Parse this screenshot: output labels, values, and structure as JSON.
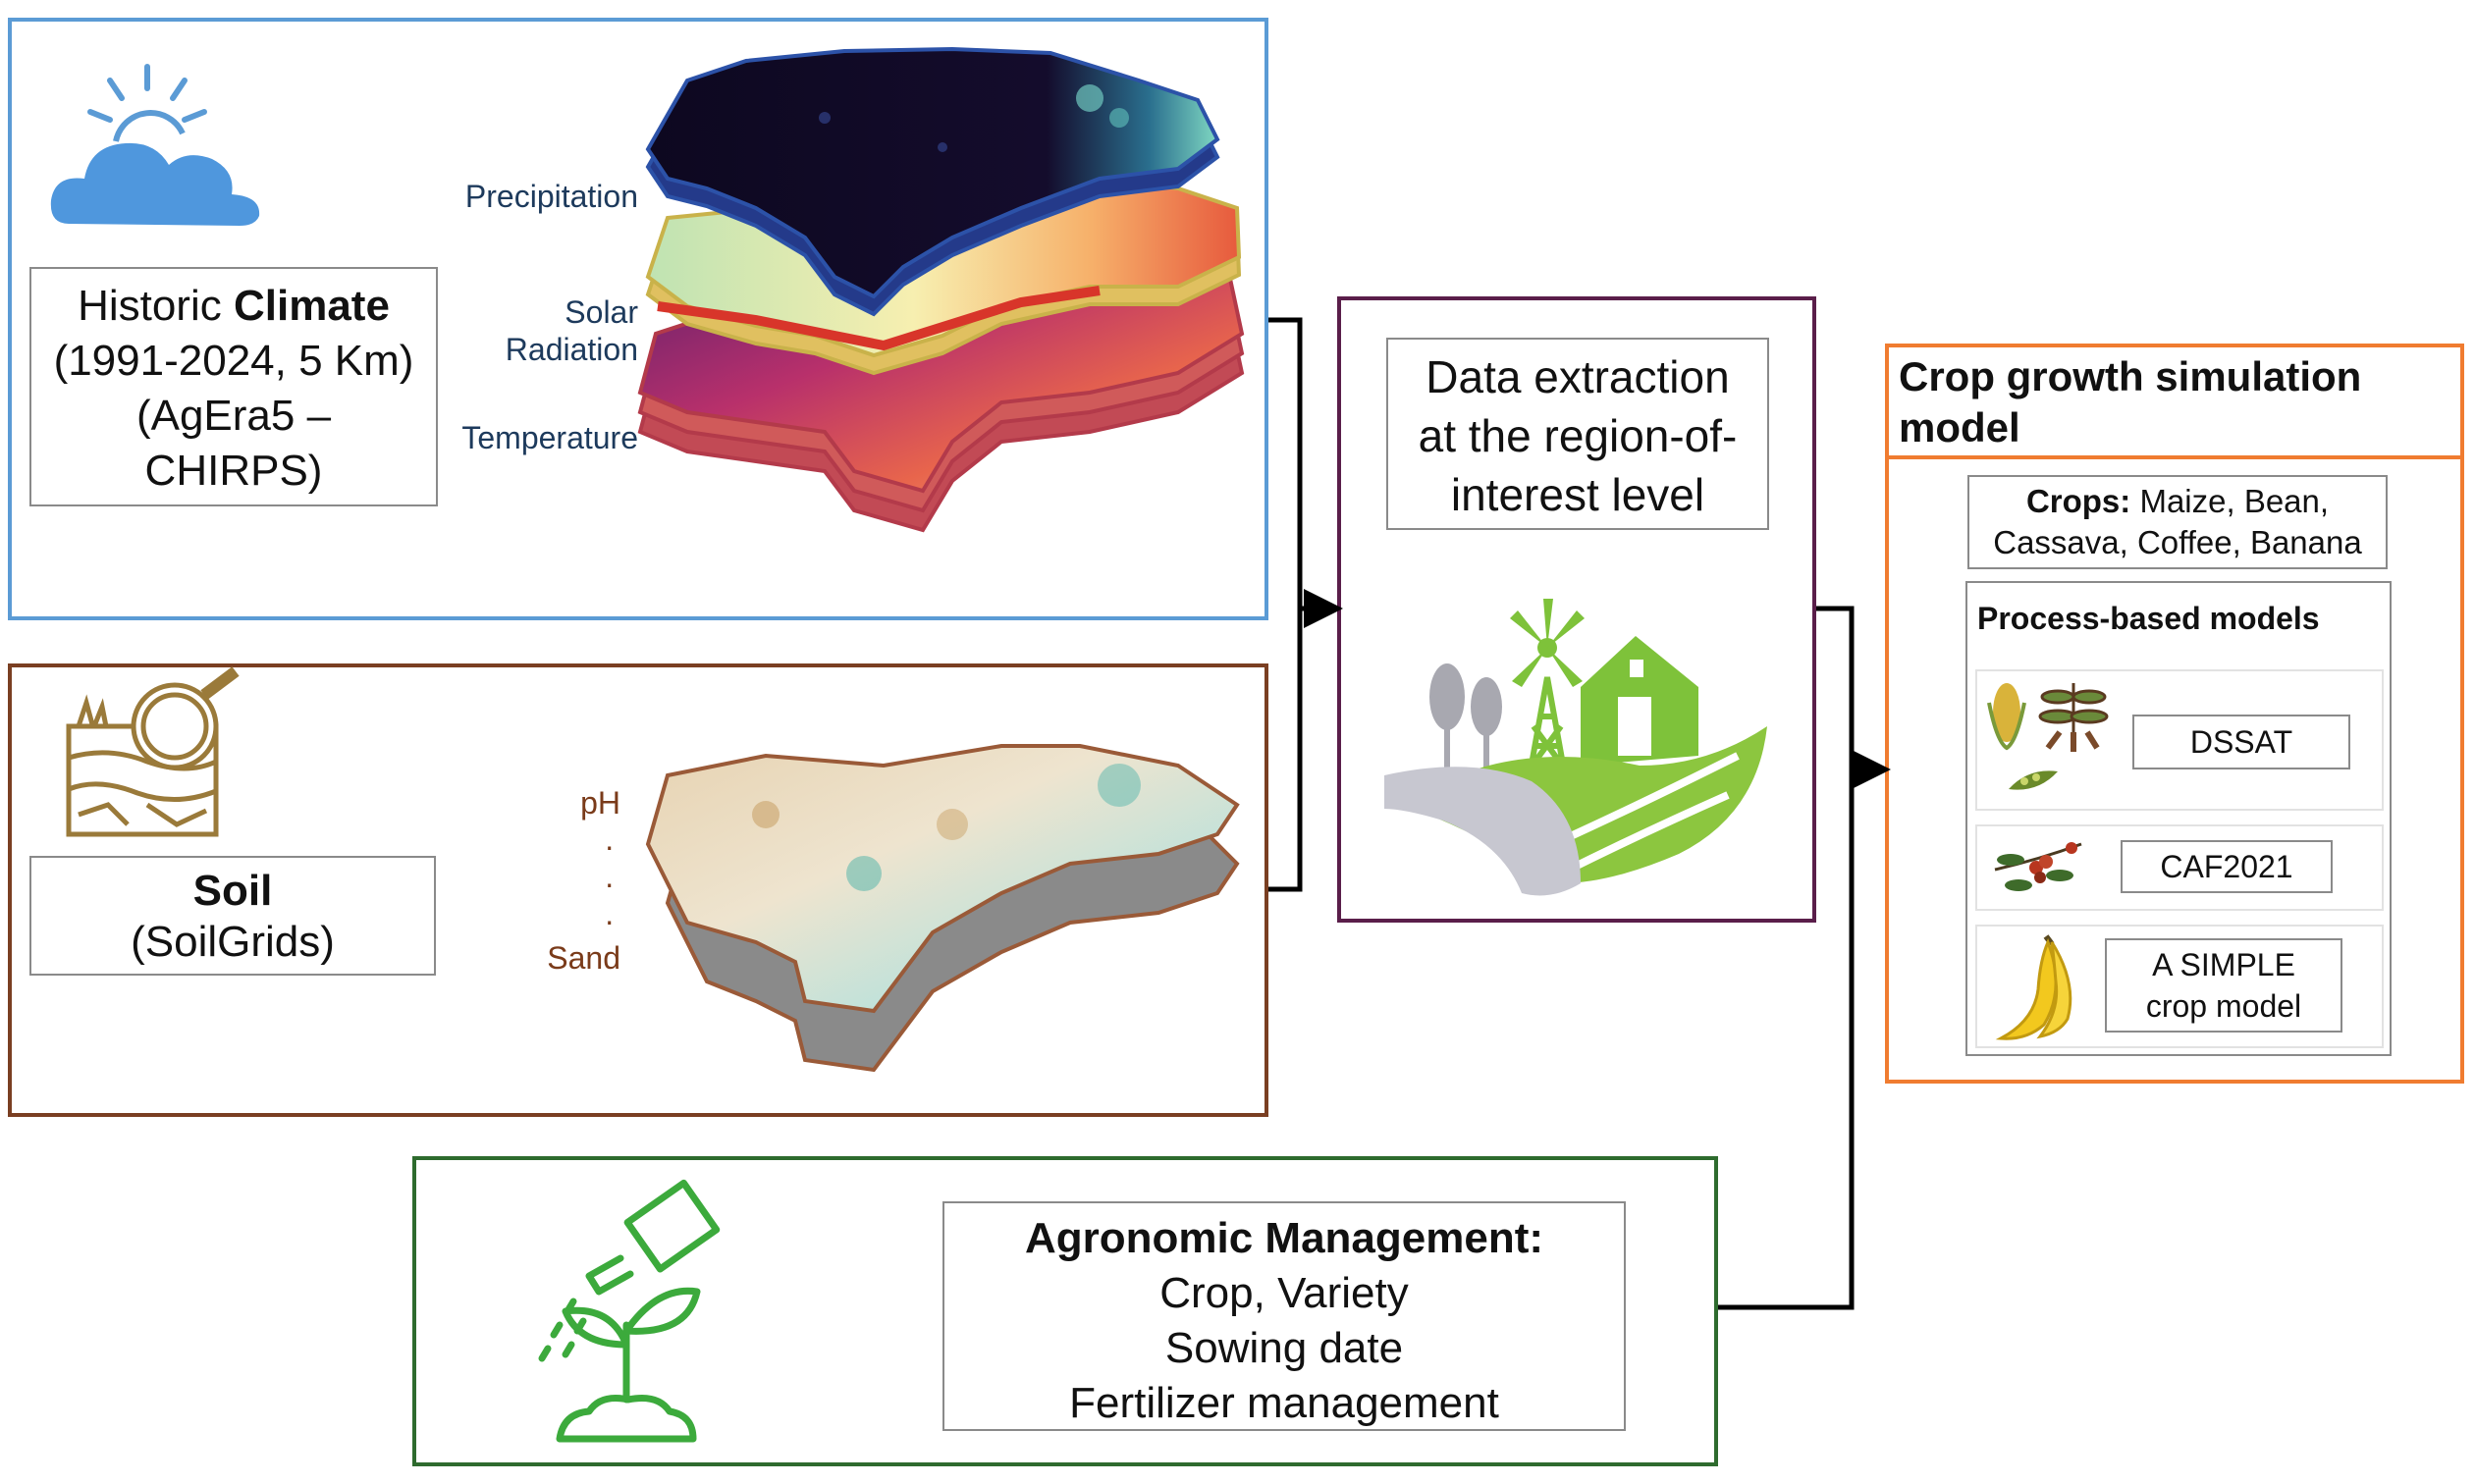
{
  "climate": {
    "title_pre": "Historic ",
    "title_bold": "Climate",
    "line2": "(1991-2024, 5 Km)",
    "line3": "(AgEra5 –",
    "line4": "CHIRPS)",
    "layers": {
      "precipitation": "Precipitation",
      "solar_1": "Solar",
      "solar_2": "Radiation",
      "temperature": "Temperature"
    },
    "border_color": "#5b9bd5",
    "icon": "sun-cloud-icon"
  },
  "soil": {
    "title": "Soil",
    "subtitle": "(SoilGrids)",
    "layers": {
      "top": "pH",
      "dots": [
        "·",
        "·",
        "·"
      ],
      "bottom": "Sand"
    },
    "border_color": "#7a3f22",
    "icon": "soil-magnifier-icon"
  },
  "extraction": {
    "line1": "Data extraction",
    "line2": "at the region-of-",
    "line3": "interest level",
    "border_color": "#5a1e4a",
    "icon": "farm-windmill-icon"
  },
  "agronomic": {
    "title": "Agronomic Management:",
    "items": [
      "Crop, Variety",
      "Sowing date",
      "Fertilizer management"
    ],
    "border_color": "#2e6b2e",
    "icon": "watering-can-plant-icon"
  },
  "crop_model": {
    "title_1": "Crop growth simulation",
    "title_2": "model",
    "crops_label": "Crops:",
    "crops_line1": " Maize, Bean,",
    "crops_line2": "Cassava, Coffee, Banana",
    "process_title": "Process-based models",
    "models": [
      {
        "name": "DSSAT",
        "icon": "maize-cassava-bean-icon"
      },
      {
        "name": "CAF2021",
        "icon": "coffee-branch-icon"
      },
      {
        "name_1": "A SIMPLE",
        "name_2": "crop model",
        "icon": "banana-icon"
      }
    ],
    "border_color": "#f07c30"
  }
}
